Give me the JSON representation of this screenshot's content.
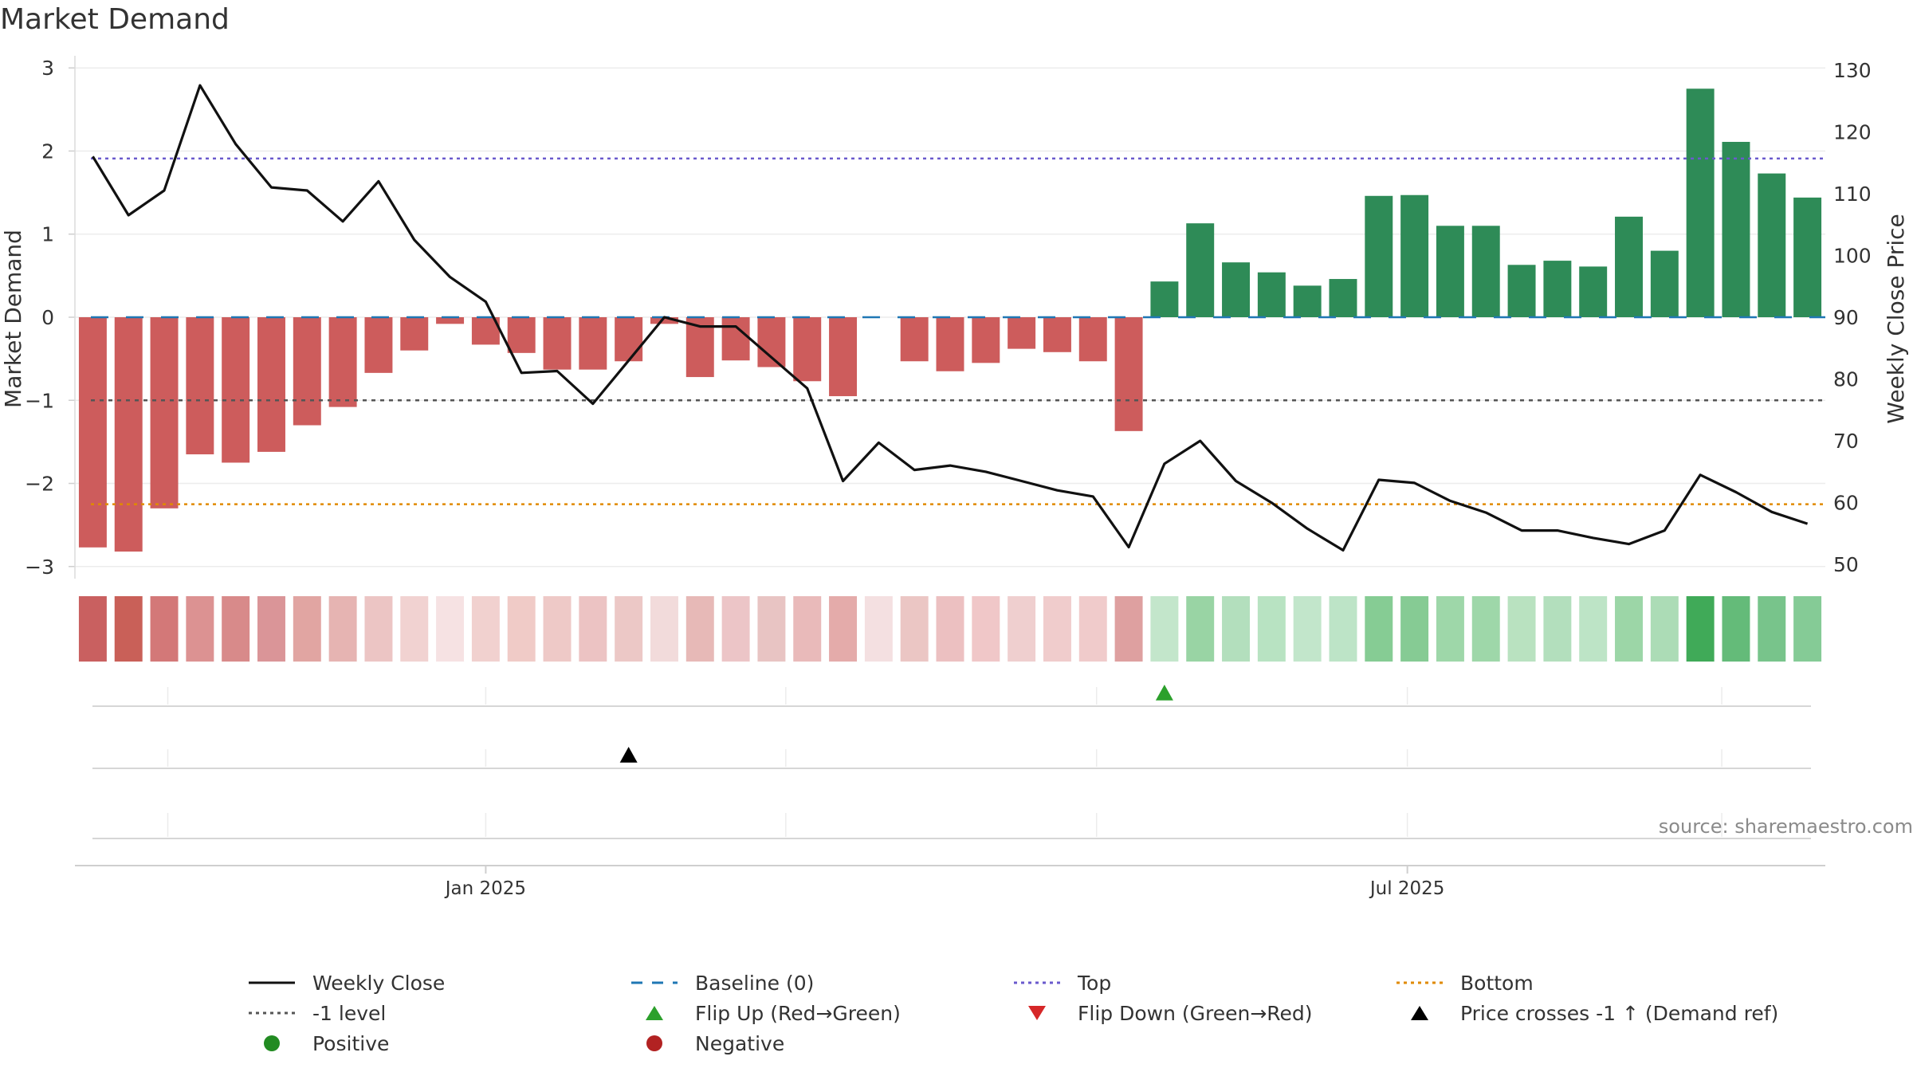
{
  "chart_data": {
    "type": "bar",
    "title": "Market Demand",
    "ylabel": "Market Demand",
    "y2label": "Weekly Close Price",
    "ylim": [
      -3.05,
      3.05
    ],
    "y_ticks": [
      3,
      2,
      1,
      0,
      -1,
      -2,
      -3
    ],
    "y_tick_labels": [
      "3",
      "2",
      "1",
      "0",
      "−1",
      "−2",
      "−3"
    ],
    "y2lim": [
      49,
      131
    ],
    "y2_ticks": [
      130,
      120,
      110,
      100,
      90,
      80,
      70,
      60,
      50
    ],
    "y2_tick_labels": [
      "130",
      "120",
      "110",
      "100",
      "90",
      "80",
      "70",
      "60",
      "50"
    ],
    "x_tick_labels": [
      {
        "label": "Jan 2025",
        "week": 11.5
      },
      {
        "label": "Jul 2025",
        "week": 37.3
      }
    ],
    "minor_grid_weeks": [
      2.6,
      11.5,
      19.9,
      28.6,
      37.3,
      46.1
    ],
    "weeks": 49,
    "demand": [
      -2.77,
      -2.82,
      -2.3,
      -1.65,
      -1.75,
      -1.62,
      -1.3,
      -1.08,
      -0.67,
      -0.4,
      -0.08,
      -0.33,
      -0.43,
      -0.63,
      -0.63,
      -0.53,
      -0.08,
      -0.72,
      -0.52,
      -0.6,
      -0.77,
      -0.95,
      0,
      -0.53,
      -0.65,
      -0.55,
      -0.38,
      -0.42,
      -0.53,
      -1.37,
      0.43,
      1.13,
      0.66,
      0.54,
      0.38,
      0.46,
      1.46,
      1.47,
      1.1,
      1.1,
      0.63,
      0.68,
      0.61,
      1.21,
      0.8,
      2.75,
      2.11,
      1.73,
      1.44
    ],
    "strip_colors": [
      "#c96060",
      "#c96058",
      "#d37878",
      "#dc9292",
      "#d88a8a",
      "#da9598",
      "#e1a5a2",
      "#e6b4b2",
      "#ecc5c4",
      "#f1d2d1",
      "#f6e2e3",
      "#f1d1cf",
      "#f0cbc7",
      "#eec9c7",
      "#ecc3c3",
      "#ecc8c6",
      "#f2dbdb",
      "#e7b9b7",
      "#ecc5c7",
      "#e8c4c3",
      "#e9baba",
      "#e4abaa",
      "#f4e0e1",
      "#ebc6c4",
      "#ecc0c1",
      "#f0c7c8",
      "#efcfcf",
      "#f0cccc",
      "#f0cbcb",
      "#dea0a0",
      "#c3e6cb",
      "#99d4a4",
      "#b3dfbd",
      "#b8e3c2",
      "#c2e6cb",
      "#bde4c7",
      "#86cc94",
      "#86cb94",
      "#9ed7a9",
      "#9ed7a9",
      "#b9e2c0",
      "#b3dfbd",
      "#bde4c6",
      "#9cd6a7",
      "#acdcb6",
      "#40aa58",
      "#64bb79",
      "#78c48b",
      "#85cb96"
    ],
    "series": [
      {
        "name": "Weekly Close",
        "axis": "right",
        "values": [
          116,
          106.5,
          110.5,
          127.5,
          118,
          111,
          110.5,
          105.5,
          112,
          102.5,
          96.5,
          92.5,
          81,
          81.3,
          76,
          83,
          90,
          88.5,
          88.5,
          83.5,
          78.5,
          63.5,
          69.7,
          65.3,
          66,
          65,
          63.5,
          62,
          61,
          52.8,
          66.3,
          70,
          63.5,
          60,
          55.8,
          52.3,
          63.7,
          63.2,
          60.3,
          58.4,
          55.5,
          55.5,
          54.3,
          53.3,
          55.5,
          64.5,
          61.7,
          58.5,
          56.6
        ]
      },
      {
        "name": "Baseline (0)",
        "axis": "left",
        "value": 0
      },
      {
        "name": "Top",
        "axis": "left",
        "value": 1.91
      },
      {
        "name": "Bottom",
        "axis": "left",
        "value": -2.25
      },
      {
        "name": "-1 level",
        "axis": "left",
        "value": -1
      }
    ],
    "events": {
      "flip_up_weeks": [
        30
      ],
      "flip_down_weeks": [],
      "price_cross_weeks": [
        15
      ]
    },
    "colors": {
      "positive_bar": "#2e8b57",
      "negative_bar": "#cd5c5c",
      "close_line": "#111111",
      "baseline": "#1f77b4",
      "top": "#6a5acd",
      "bottom": "#e08a00",
      "minus1": "#555555",
      "flip_up": "#2ca02c",
      "flip_down": "#d62728",
      "cross": "#000000",
      "positive_dot": "#228b22",
      "negative_dot": "#b22222",
      "axis_grid": "#e6e6e6"
    },
    "legend": [
      {
        "label": "Weekly Close",
        "symbol": "solid-line",
        "color": "#111111"
      },
      {
        "label": "Baseline (0)",
        "symbol": "dashed-line",
        "color": "#1f77b4"
      },
      {
        "label": "Top",
        "symbol": "dotted-line",
        "color": "#6a5acd"
      },
      {
        "label": "Bottom",
        "symbol": "dotted-line",
        "color": "#e08a00"
      },
      {
        "label": "-1 level",
        "symbol": "dotted-line",
        "color": "#555555"
      },
      {
        "label": "Flip Up (Red→Green)",
        "symbol": "triangle-up",
        "color": "#2ca02c"
      },
      {
        "label": "Flip Down (Green→Red)",
        "symbol": "triangle-down",
        "color": "#d62728"
      },
      {
        "label": "Price crosses -1 ↑ (Demand ref)",
        "symbol": "triangle-up",
        "color": "#000000"
      },
      {
        "label": "Positive",
        "symbol": "dot",
        "color": "#228b22"
      },
      {
        "label": "Negative",
        "symbol": "dot",
        "color": "#b22222"
      }
    ],
    "source": "source: sharemaestro.com"
  }
}
